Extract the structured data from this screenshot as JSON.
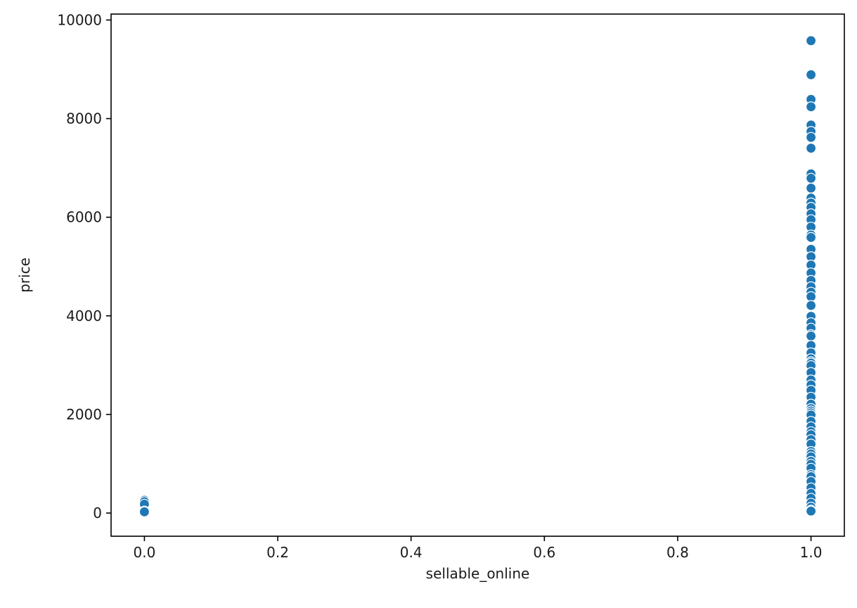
{
  "chart_data": {
    "type": "scatter",
    "title": "",
    "xlabel": "sellable_online",
    "ylabel": "price",
    "xlim": [
      -0.05,
      1.05
    ],
    "ylim": [
      -470,
      10120
    ],
    "x_ticks": [
      0.0,
      0.2,
      0.4,
      0.6,
      0.8,
      1.0
    ],
    "x_tick_labels": [
      "0.0",
      "0.2",
      "0.4",
      "0.6",
      "0.8",
      "1.0"
    ],
    "y_ticks": [
      0,
      2000,
      4000,
      6000,
      8000,
      10000
    ],
    "y_tick_labels": [
      "0",
      "2000",
      "4000",
      "6000",
      "8000",
      "10000"
    ],
    "grid": false,
    "legend": "none",
    "marker_color": "#1f77b4",
    "marker_edge_color": "#ffffff",
    "series": [
      {
        "points": [
          [
            0,
            260
          ],
          [
            0,
            230
          ],
          [
            0,
            180
          ],
          [
            0,
            40
          ],
          [
            0,
            25
          ],
          [
            1,
            9580
          ],
          [
            1,
            8890
          ],
          [
            1,
            8390
          ],
          [
            1,
            8240
          ],
          [
            1,
            7870
          ],
          [
            1,
            7740
          ],
          [
            1,
            7620
          ],
          [
            1,
            7400
          ],
          [
            1,
            6880
          ],
          [
            1,
            6790
          ],
          [
            1,
            6590
          ],
          [
            1,
            6390
          ],
          [
            1,
            6290
          ],
          [
            1,
            6200
          ],
          [
            1,
            6070
          ],
          [
            1,
            5950
          ],
          [
            1,
            5800
          ],
          [
            1,
            5640
          ],
          [
            1,
            5590
          ],
          [
            1,
            5350
          ],
          [
            1,
            5200
          ],
          [
            1,
            5030
          ],
          [
            1,
            4870
          ],
          [
            1,
            4720
          ],
          [
            1,
            4590
          ],
          [
            1,
            4480
          ],
          [
            1,
            4390
          ],
          [
            1,
            4210
          ],
          [
            1,
            3990
          ],
          [
            1,
            3860
          ],
          [
            1,
            3750
          ],
          [
            1,
            3620
          ],
          [
            1,
            3590
          ],
          [
            1,
            3400
          ],
          [
            1,
            3250
          ],
          [
            1,
            3130
          ],
          [
            1,
            3070
          ],
          [
            1,
            3040
          ],
          [
            1,
            2990
          ],
          [
            1,
            2850
          ],
          [
            1,
            2700
          ],
          [
            1,
            2600
          ],
          [
            1,
            2490
          ],
          [
            1,
            2350
          ],
          [
            1,
            2210
          ],
          [
            1,
            2120
          ],
          [
            1,
            2070
          ],
          [
            1,
            2030
          ],
          [
            1,
            1990
          ],
          [
            1,
            1860
          ],
          [
            1,
            1750
          ],
          [
            1,
            1650
          ],
          [
            1,
            1590
          ],
          [
            1,
            1490
          ],
          [
            1,
            1400
          ],
          [
            1,
            1250
          ],
          [
            1,
            1200
          ],
          [
            1,
            1140
          ],
          [
            1,
            1050
          ],
          [
            1,
            990
          ],
          [
            1,
            910
          ],
          [
            1,
            780
          ],
          [
            1,
            740
          ],
          [
            1,
            640
          ],
          [
            1,
            510
          ],
          [
            1,
            400
          ],
          [
            1,
            300
          ],
          [
            1,
            200
          ],
          [
            1,
            120
          ],
          [
            1,
            60
          ],
          [
            1,
            40
          ]
        ]
      }
    ]
  }
}
